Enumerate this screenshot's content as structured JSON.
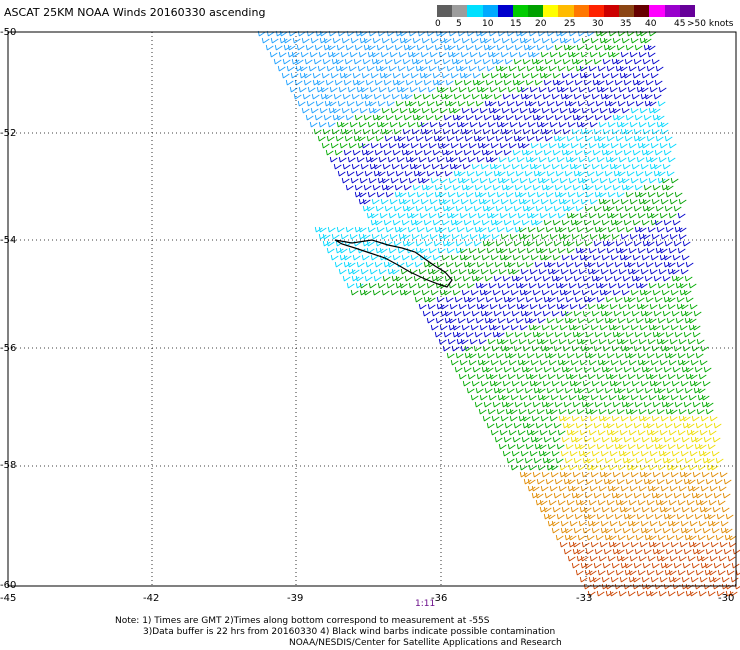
{
  "title": "ASCAT 25KM NOAA Winds 20160330 ascending",
  "legend": {
    "colors": [
      "#5e5e5e",
      "#9c9c9c",
      "#00e0ff",
      "#00aaff",
      "#0000cc",
      "#00cc00",
      "#00a000",
      "#ffff00",
      "#ffbb00",
      "#ff7700",
      "#ff2200",
      "#cc0000",
      "#8b4513",
      "#660000",
      "#ff00ff",
      "#9900cc",
      "#660099"
    ],
    "labels": [
      "0",
      "5",
      "10",
      "15",
      "20",
      "25",
      "30",
      "35",
      "40",
      "45",
      ">50 knots"
    ]
  },
  "map": {
    "lat_labels": [
      "-50",
      "-52",
      "-54",
      "-56",
      "-58",
      "-60"
    ],
    "lon_labels": [
      "-45",
      "-42",
      "-39",
      "-36",
      "-33",
      "-30"
    ],
    "time_label": "1:11"
  },
  "notes": {
    "line1": "Note: 1) Times are GMT 2)Times along bottom correspond to measurement at -55S",
    "line2": "3)Data buffer is 22 hrs from 20160330 4) Black wind barbs indicate possible contamination",
    "line3": "NOAA/NESDIS/Center for Satellite Applications and Research"
  }
}
